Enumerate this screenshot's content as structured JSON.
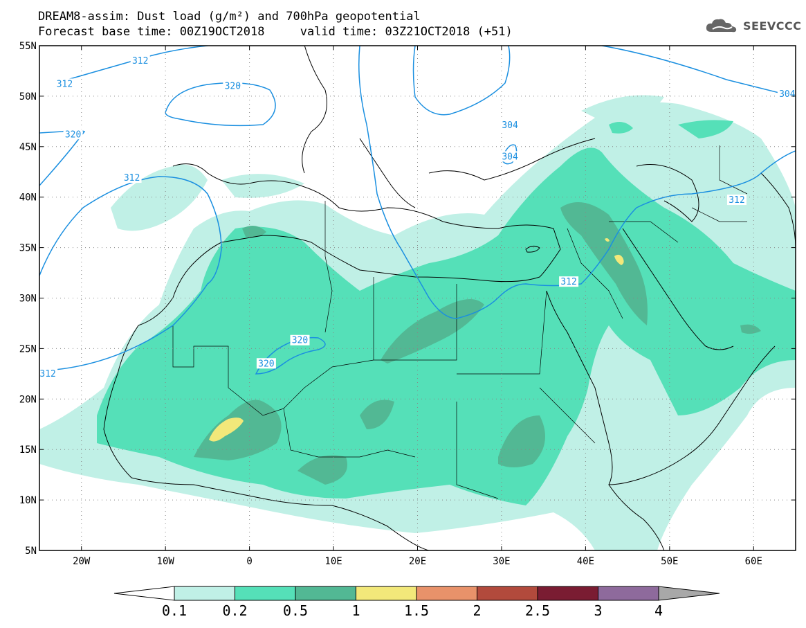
{
  "title": {
    "line1": "DREAM8-assim: Dust load (g/m²) and 700hPa geopotential",
    "line2_base": "Forecast base time: 00Z19OCT2018",
    "line2_valid": "valid time: 03Z21OCT2018 (+51)"
  },
  "logo": {
    "name": "cloud-logo-icon",
    "text": "SEEVCCC"
  },
  "map": {
    "lat_labels": [
      "55N",
      "50N",
      "45N",
      "40N",
      "35N",
      "30N",
      "25N",
      "20N",
      "15N",
      "10N",
      "5N"
    ],
    "lon_labels": [
      "20W",
      "10W",
      "0",
      "10E",
      "20E",
      "30E",
      "40E",
      "50E",
      "60E"
    ],
    "lat_range": [
      5,
      55
    ],
    "lon_range": [
      -25,
      65
    ],
    "grid": "dotted",
    "contour_labels": [
      {
        "text": "312",
        "lon": -13,
        "lat": 53.5
      },
      {
        "text": "312",
        "lon": -22,
        "lat": 51.2
      },
      {
        "text": "320",
        "lon": -2,
        "lat": 51
      },
      {
        "text": "320",
        "lon": -21,
        "lat": 46.2
      },
      {
        "text": "312",
        "lon": -14,
        "lat": 41.9
      },
      {
        "text": "304",
        "lon": 31,
        "lat": 47.1
      },
      {
        "text": "304",
        "lon": 31,
        "lat": 44
      },
      {
        "text": "304",
        "lon": 64,
        "lat": 50.2
      },
      {
        "text": "312",
        "lon": 58,
        "lat": 39.7
      },
      {
        "text": "312",
        "lon": 38,
        "lat": 31.6
      },
      {
        "text": "320",
        "lon": 6,
        "lat": 25.8
      },
      {
        "text": "320",
        "lon": 2,
        "lat": 23.5
      },
      {
        "text": "312",
        "lon": -24,
        "lat": 22.5
      }
    ]
  },
  "colorbar": {
    "colors": [
      "#c0f0e6",
      "#55e0b8",
      "#52b894",
      "#f2e87a",
      "#e8926a",
      "#b24a3c",
      "#7a1c32",
      "#8e6a9c"
    ],
    "left_triangle_color": "#ffffff",
    "right_triangle_color": "#a8a8a8",
    "labels": [
      "0.1",
      "0.2",
      "0.5",
      "1",
      "1.5",
      "2",
      "2.5",
      "3",
      "4"
    ]
  }
}
